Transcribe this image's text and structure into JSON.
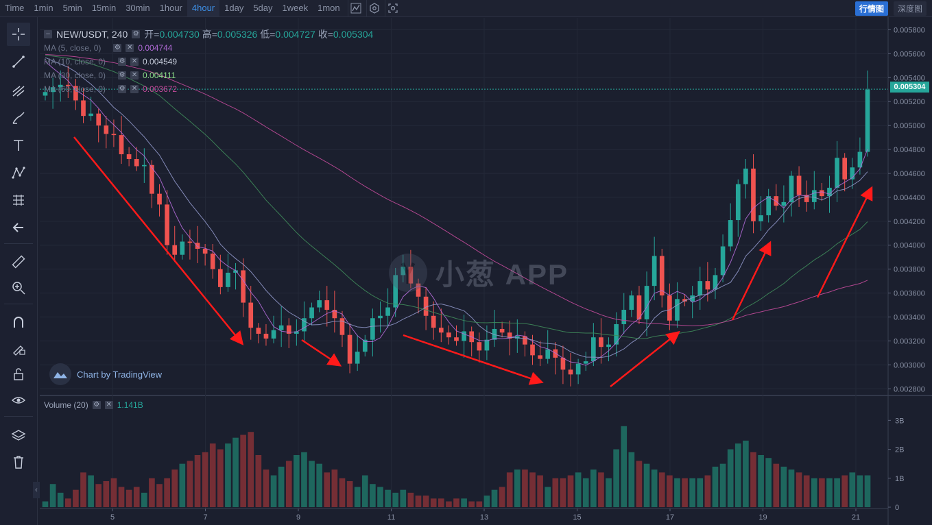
{
  "toolbar": {
    "intervals": [
      "Time",
      "1min",
      "5min",
      "15min",
      "30min",
      "1hour",
      "4hour",
      "1day",
      "5day",
      "1week",
      "1mon"
    ],
    "active_interval": "4hour",
    "right_buttons": [
      "行情图",
      "深度图"
    ]
  },
  "legend": {
    "symbol": "NEW/USDT, 240",
    "open_label": "开=",
    "open": "0.004730",
    "high_label": "高=",
    "high": "0.005326",
    "low_label": "低=",
    "low": "0.004727",
    "close_label": "收=",
    "close": "0.005304"
  },
  "ma": [
    {
      "label": "MA (5, close, 0)",
      "value": "0.004744",
      "color": "#b06ad6"
    },
    {
      "label": "MA (10, close, 0)",
      "value": "0.004549",
      "color": "#c7cddb"
    },
    {
      "label": "MA (30, close, 0)",
      "value": "0.004111",
      "color": "#8ee08a"
    },
    {
      "label": "MA (60, close, 0)",
      "value": "0.003672",
      "color": "#c24a9a"
    }
  ],
  "volume_legend": {
    "label": "Volume (20)",
    "value": "1.141B"
  },
  "tradingview_text": "Chart by TradingView",
  "watermark": "小葱 APP",
  "current_price_tag": "0.005304",
  "colors": {
    "up": "#26a69a",
    "down": "#ef5350",
    "background": "#1b1f2e",
    "arrow": "#ff1a1a"
  },
  "chart_data": {
    "type": "candlestick",
    "x_ticks": [
      "5",
      "7",
      "9",
      "11",
      "13",
      "15",
      "17",
      "19",
      "21"
    ],
    "price_ticks": [
      "0.005800",
      "0.005600",
      "0.005400",
      "0.005200",
      "0.005000",
      "0.004800",
      "0.004600",
      "0.004400",
      "0.004200",
      "0.004000",
      "0.003800",
      "0.003600",
      "0.003400",
      "0.003200",
      "0.003000",
      "0.002800"
    ],
    "price_range": [
      0.00275,
      0.0059
    ],
    "volume_ticks": [
      "3B",
      "2B",
      "1B",
      "0"
    ],
    "volume_range": [
      0,
      3.6
    ],
    "closes": [
      0.00528,
      0.00532,
      0.00534,
      0.00533,
      0.00521,
      0.00508,
      0.0051,
      0.005,
      0.00493,
      0.00492,
      0.00476,
      0.00472,
      0.00466,
      0.00467,
      0.00443,
      0.00434,
      0.004,
      0.00392,
      0.00403,
      0.00402,
      0.00397,
      0.00393,
      0.0038,
      0.00365,
      0.00377,
      0.00379,
      0.00352,
      0.00331,
      0.00326,
      0.00322,
      0.00329,
      0.00333,
      0.00326,
      0.00328,
      0.00339,
      0.00348,
      0.00354,
      0.00346,
      0.00339,
      0.00325,
      0.00301,
      0.00311,
      0.00321,
      0.00339,
      0.00341,
      0.00348,
      0.00375,
      0.00382,
      0.00368,
      0.00357,
      0.00341,
      0.00331,
      0.00327,
      0.00323,
      0.0032,
      0.00328,
      0.00319,
      0.00312,
      0.00321,
      0.0033,
      0.00327,
      0.00322,
      0.00324,
      0.00317,
      0.00308,
      0.00305,
      0.00313,
      0.00306,
      0.00296,
      0.00292,
      0.00301,
      0.00303,
      0.00323,
      0.00315,
      0.00317,
      0.00334,
      0.00346,
      0.00358,
      0.00338,
      0.00366,
      0.00391,
      0.00358,
      0.00337,
      0.00355,
      0.00353,
      0.00358,
      0.0037,
      0.00363,
      0.00375,
      0.00399,
      0.00421,
      0.00451,
      0.00464,
      0.0042,
      0.00425,
      0.00441,
      0.00433,
      0.00436,
      0.00458,
      0.00442,
      0.00436,
      0.00446,
      0.00441,
      0.00448,
      0.00473,
      0.00455,
      0.00465,
      0.00478,
      0.0053
    ],
    "volumes": [
      0.2,
      0.8,
      0.5,
      0.3,
      0.6,
      1.2,
      1.1,
      0.8,
      0.9,
      1.0,
      0.7,
      0.6,
      0.7,
      0.5,
      1.0,
      0.8,
      1.0,
      1.3,
      1.5,
      1.6,
      1.8,
      1.9,
      2.2,
      2.0,
      2.2,
      2.4,
      2.5,
      2.6,
      1.8,
      1.3,
      1.1,
      1.4,
      1.6,
      1.8,
      1.9,
      1.6,
      1.5,
      1.2,
      1.3,
      1.0,
      0.9,
      0.7,
      1.1,
      0.8,
      0.7,
      0.6,
      0.5,
      0.6,
      0.5,
      0.4,
      0.4,
      0.3,
      0.3,
      0.2,
      0.3,
      0.3,
      0.2,
      0.2,
      0.4,
      0.6,
      0.7,
      1.2,
      1.3,
      1.3,
      1.2,
      1.1,
      0.7,
      1.0,
      1.0,
      1.1,
      1.2,
      1.0,
      1.3,
      1.2,
      1.0,
      2.0,
      2.8,
      1.9,
      1.6,
      1.5,
      1.3,
      1.2,
      1.1,
      1.0,
      1.0,
      1.0,
      1.0,
      1.1,
      1.4,
      1.5,
      2.0,
      2.2,
      2.3,
      1.9,
      1.8,
      1.7,
      1.5,
      1.4,
      1.3,
      1.2,
      1.1,
      1.0,
      1.0,
      1.0,
      1.0,
      1.1,
      1.2,
      1.1,
      1.1
    ]
  }
}
